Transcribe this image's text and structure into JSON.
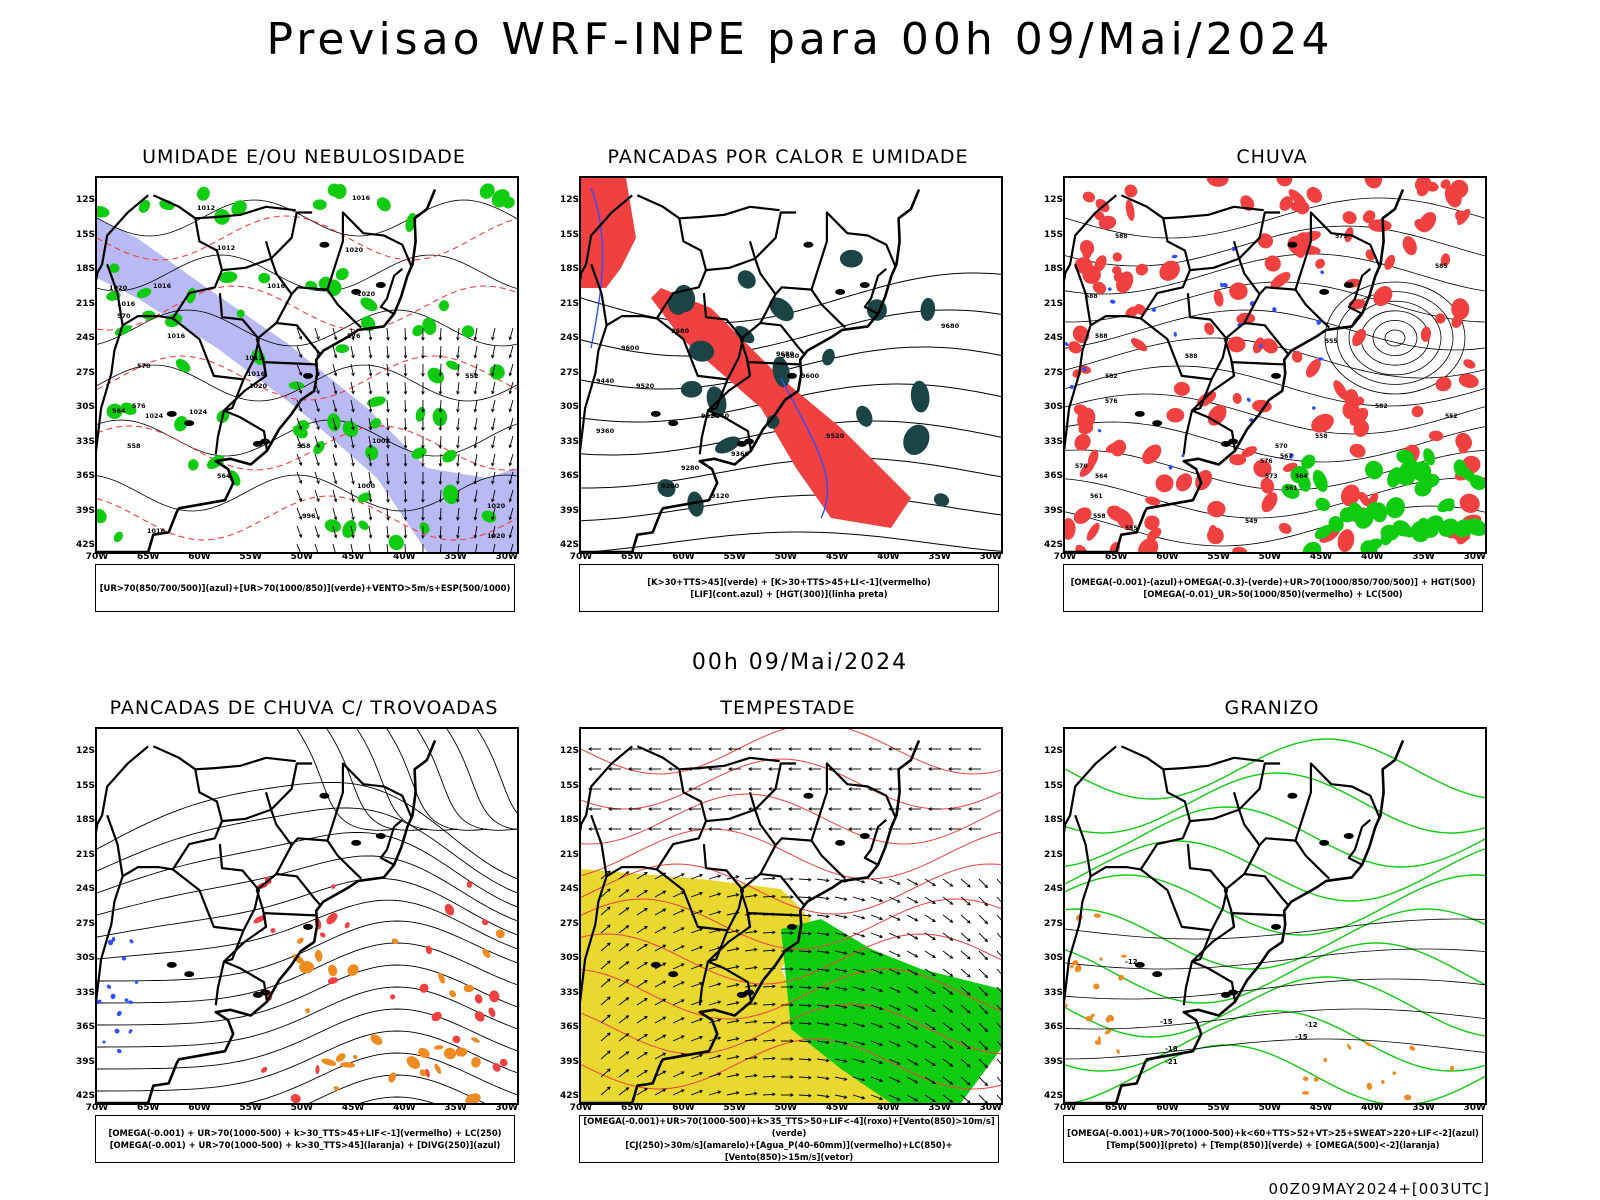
{
  "title": "Previsao WRF-INPE  para 00h 09/Mai/2024",
  "mid_title": "00h 09/Mai/2024",
  "footer": "00Z09MAY2024+[003UTC]",
  "axes": {
    "lat_labels": [
      "12S",
      "15S",
      "18S",
      "21S",
      "24S",
      "27S",
      "30S",
      "33S",
      "36S",
      "39S",
      "42S"
    ],
    "lon_labels": [
      "70W",
      "65W",
      "60W",
      "55W",
      "50W",
      "45W",
      "40W",
      "35W",
      "30W"
    ]
  },
  "colors": {
    "red": "#f04040",
    "green": "#10cc10",
    "blue": "#3050ff",
    "lavender": "#a8a8f0",
    "darkteal": "#1c4444",
    "yellow": "#e8d830",
    "orange": "#ee8a20",
    "black": "#000000"
  },
  "panels": [
    {
      "id": "umidade",
      "title": "UMIDADE E/OU NEBULOSIDADE",
      "legend": [
        "[UR>70(850/700/500)](azul)+[UR>70(1000/850)](verde)+VENTO>5m/s+ESP(500/1000)"
      ],
      "contour_labels": [
        "1016",
        "1012",
        "1012",
        "1020",
        "1016",
        "1020",
        "1016",
        "1020",
        "1016",
        "1016",
        "1012",
        "1024",
        "1024",
        "1020",
        "1016",
        "1008",
        "1000",
        "1020",
        "996",
        "1020",
        "1016",
        "576",
        "570",
        "564",
        "558",
        "552",
        "570",
        "576",
        "564",
        "558"
      ]
    },
    {
      "id": "pancadas-calor",
      "title": "PANCADAS POR CALOR E UMIDADE",
      "legend": [
        "[K>30+TTS>45](verde) + [K>30+TTS>45+LI<-1](vermelho)",
        "[LIF](cont.azul) + [HGT(300)](linha preta)"
      ],
      "contour_labels": [
        "9680",
        "9680",
        "9600",
        "9520",
        "9440",
        "9520",
        "9360",
        "9440",
        "9280",
        "9360",
        "9200",
        "9120",
        "9520",
        "9680",
        "9680",
        "9600"
      ]
    },
    {
      "id": "chuva",
      "title": "CHUVA",
      "legend": [
        "[OMEGA(-0.001)-(azul)+OMEGA(-0.3)-(verde)+UR>70(1000/850/700/500)] + HGT(500)",
        "[OMEGA(-0.01)_UR>50(1000/850)(vermelho) + LC(500)"
      ],
      "contour_labels": [
        "588",
        "588",
        "588",
        "582",
        "576",
        "570",
        "564",
        "561",
        "558",
        "555",
        "552",
        "549",
        "573",
        "576",
        "570",
        "567",
        "564",
        "561",
        "558",
        "555",
        "588",
        "582",
        "579",
        "585"
      ]
    },
    {
      "id": "trovoadas",
      "title": "PANCADAS DE CHUVA C/ TROVOADAS",
      "legend": [
        "[OMEGA(-0.001) + UR>70(1000-500) + k>30_TTS>45+LIF<-1](vermelho) + LC(250)",
        "[OMEGA(-0.001) + UR>70(1000-500) + k>30_TTS>45](laranja) + [DIVG(250)](azul)"
      ],
      "contour_labels": []
    },
    {
      "id": "tempestade",
      "title": "TEMPESTADE",
      "legend": [
        "[OMEGA(-0.001)+UR>70(1000-500)+k>35_TTS>50+LIF<-4](roxo)+[Vento(850)>10m/s](verde)",
        "[CJ(250)>30m/s](amarelo)+[Agua_P(40-60mm)](vermelho)+LC(850)+[Vento(850)>15m/s](vetor)"
      ],
      "contour_labels": []
    },
    {
      "id": "granizo",
      "title": "GRANIZO",
      "legend": [
        "[OMEGA(-0.001)+UR>70(1000-500)+k<60+TTS>52+VT>25+SWEAT>220+LIF<-2](azul)",
        "[Temp(500)](preto) + [Temp(850)](verde) + [OMEGA(500)<-2](laranja)"
      ],
      "contour_labels": [
        "-12",
        "-15",
        "-18",
        "-21",
        "-12",
        "-15"
      ]
    }
  ]
}
